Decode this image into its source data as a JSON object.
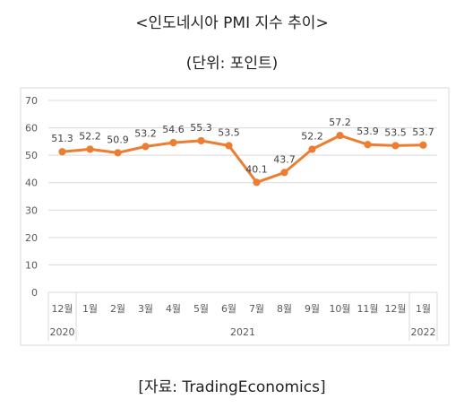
{
  "title": "<인도네시아 PMI 지수 추이>",
  "subtitle": "(단위: 포인트)",
  "source": "[자료: TradingEconomics]",
  "colors": {
    "line": "#ED7D31",
    "grid": "#D9D9D9",
    "axis_text": "#595959",
    "frame": "#D9D9D9"
  },
  "chart_data": {
    "type": "line",
    "categories": [
      "12월",
      "1월",
      "2월",
      "3월",
      "4월",
      "5월",
      "6월",
      "7월",
      "8월",
      "9월",
      "10월",
      "11월",
      "12월",
      "1월"
    ],
    "year_groups": [
      {
        "label": "2020",
        "span": 1
      },
      {
        "label": "2021",
        "span": 12
      },
      {
        "label": "2022",
        "span": 1
      }
    ],
    "series": [
      {
        "values": [
          51.3,
          52.2,
          50.9,
          53.2,
          54.6,
          55.3,
          53.5,
          40.1,
          43.7,
          52.2,
          57.2,
          53.9,
          53.5,
          53.7
        ]
      }
    ],
    "ylim": [
      0,
      70
    ],
    "yticks": [
      0,
      10,
      20,
      30,
      40,
      50,
      60,
      70
    ],
    "grid": true,
    "legend": "none",
    "data_labels": true
  }
}
